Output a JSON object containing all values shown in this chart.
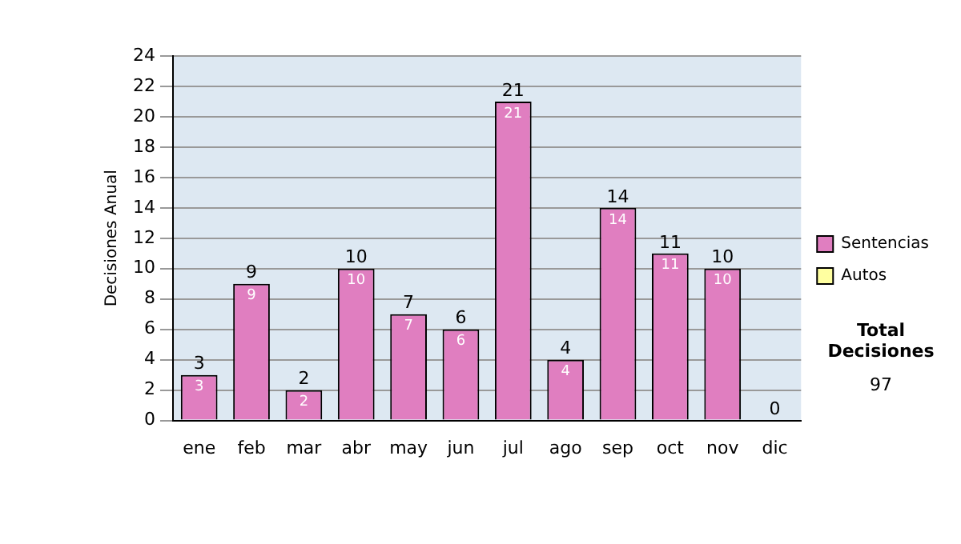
{
  "chart_data": {
    "type": "bar",
    "ylabel": "Decisiones Anual",
    "categories": [
      "ene",
      "feb",
      "mar",
      "abr",
      "may",
      "jun",
      "jul",
      "ago",
      "sep",
      "oct",
      "nov",
      "dic"
    ],
    "series": [
      {
        "name": "Sentencias",
        "color": "#e07ec0",
        "values": [
          3,
          9,
          2,
          10,
          7,
          6,
          21,
          4,
          14,
          11,
          10,
          0
        ],
        "value_labels": [
          "3",
          "9",
          "2",
          "10",
          "7",
          "6",
          "21",
          "4",
          "14",
          "11",
          "10",
          null
        ]
      },
      {
        "name": "Autos",
        "color": "#ffffa0",
        "values": [
          0,
          0,
          0,
          0,
          0,
          0,
          0,
          0,
          0,
          0,
          0,
          0
        ]
      }
    ],
    "stacked": true,
    "totals": [
      "3",
      "9",
      "2",
      "10",
      "7",
      "6",
      "21",
      "4",
      "14",
      "11",
      "10",
      "0"
    ],
    "ylim": [
      0,
      24
    ],
    "yticks": [
      0,
      2,
      4,
      6,
      8,
      10,
      12,
      14,
      16,
      18,
      20,
      22,
      24
    ],
    "grid": "y",
    "legend": "right",
    "annotations": [
      "Total Decisiones",
      "97"
    ]
  }
}
